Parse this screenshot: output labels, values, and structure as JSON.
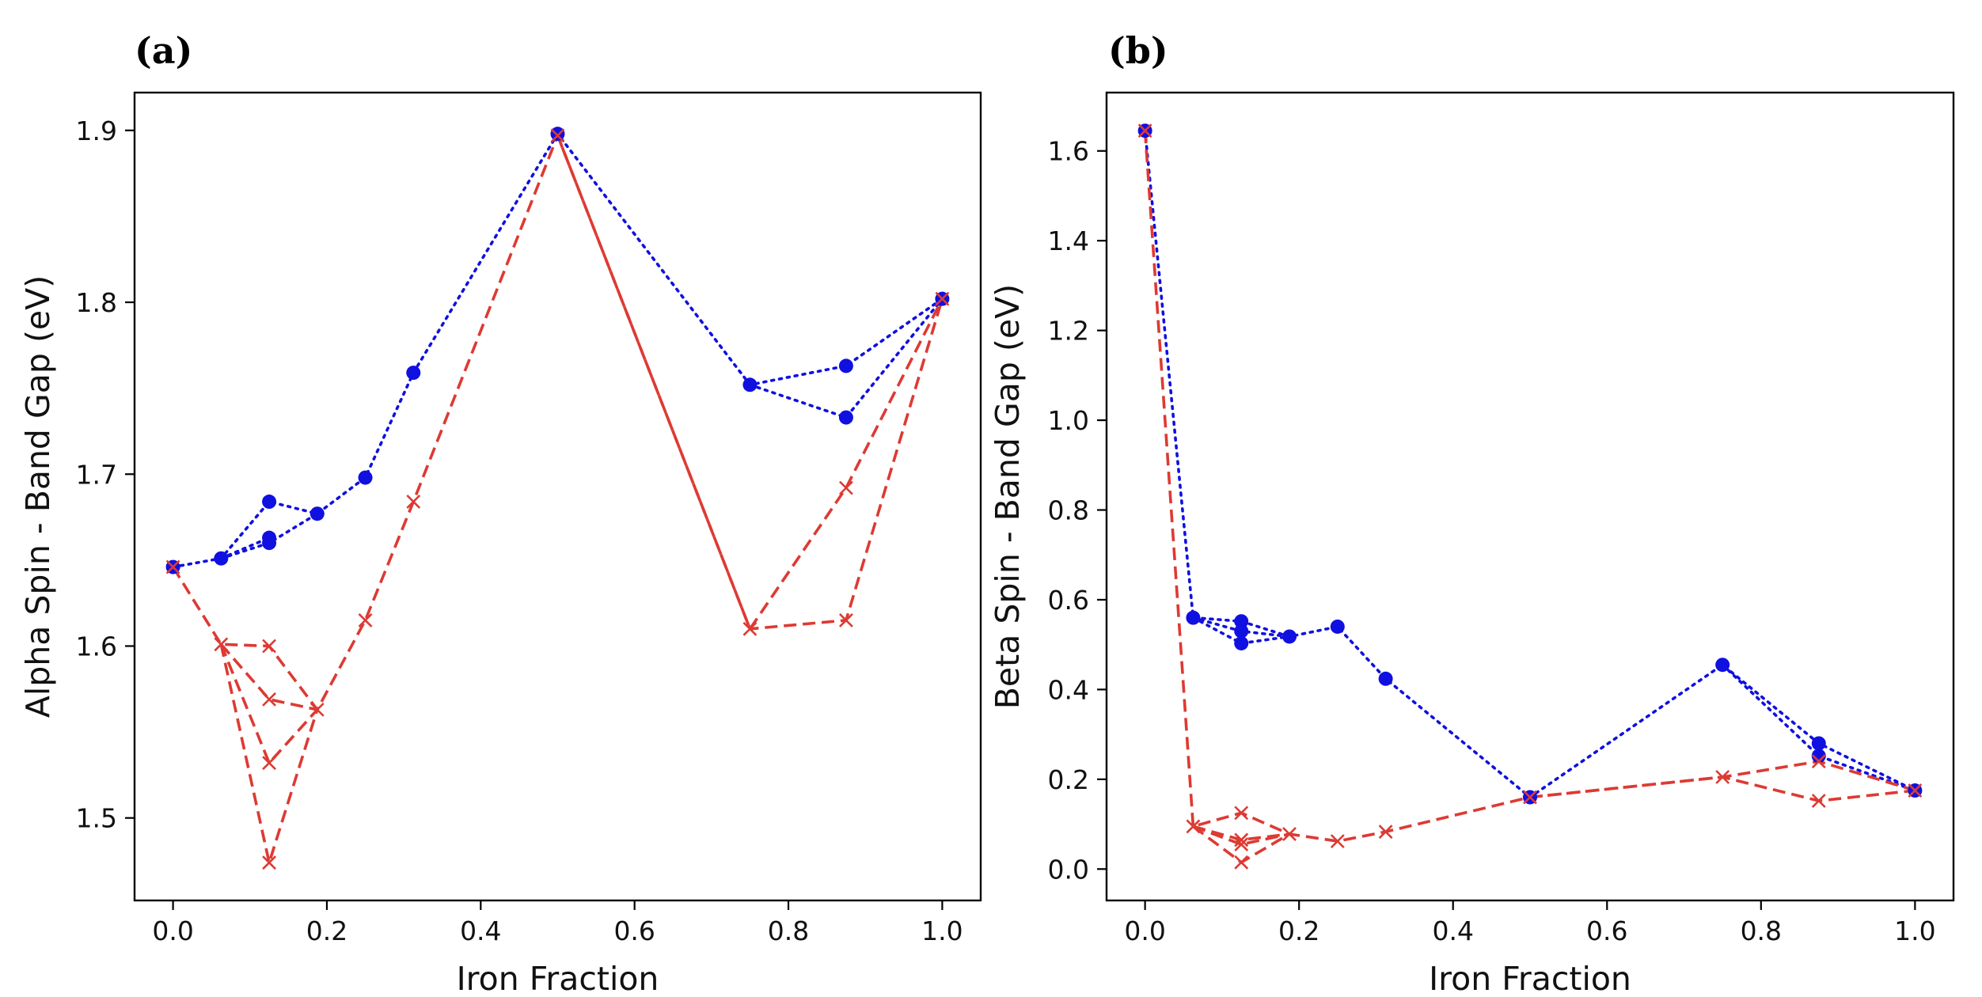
{
  "chart_data": [
    {
      "type": "line",
      "panel_label": "(a)",
      "xlabel": "Iron Fraction",
      "ylabel": "Alpha Spin - Band Gap (eV)",
      "xlim": [
        -0.05,
        1.05
      ],
      "ylim": [
        1.452,
        1.922
      ],
      "xticks": [
        0.0,
        0.2,
        0.4,
        0.6,
        0.8,
        1.0
      ],
      "xtick_labels": [
        "0.0",
        "0.2",
        "0.4",
        "0.6",
        "0.8",
        "1.0"
      ],
      "yticks": [
        1.5,
        1.6,
        1.7,
        1.8,
        1.9
      ],
      "ytick_labels": [
        "1.5",
        "1.6",
        "1.7",
        "1.8",
        "1.9"
      ],
      "series": [
        {
          "name": "blue-dotted-circles",
          "color": "#1010e0",
          "linestyle": "dotted",
          "marker": "circle",
          "paths": [
            {
              "x": [
                0.0,
                0.0625,
                0.125,
                0.1875,
                0.25,
                0.3125,
                0.5,
                0.75,
                0.875,
                1.0
              ],
              "y": [
                1.646,
                1.651,
                1.684,
                1.677,
                1.698,
                1.759,
                1.898,
                1.752,
                1.763,
                1.802
              ]
            },
            {
              "x": [
                0.0625,
                0.125,
                0.1875
              ],
              "y": [
                1.651,
                1.66,
                1.677
              ]
            },
            {
              "x": [
                0.0625,
                0.125
              ],
              "y": [
                1.651,
                1.663
              ]
            },
            {
              "x": [
                0.75,
                0.875,
                1.0
              ],
              "y": [
                1.752,
                1.733,
                1.802
              ]
            }
          ]
        },
        {
          "name": "red-dashed-crosses",
          "color": "#dd3a33",
          "linestyle": "dashed",
          "marker": "x",
          "paths": [
            {
              "x": [
                0.0,
                0.0625,
                0.125,
                0.1875,
                0.25,
                0.3125,
                0.5,
                0.75,
                0.875,
                1.0
              ],
              "y": [
                1.646,
                1.601,
                1.6,
                1.563,
                1.615,
                1.684,
                1.897,
                1.61,
                1.615,
                1.802
              ]
            },
            {
              "x": [
                0.0625,
                0.125,
                0.1875
              ],
              "y": [
                1.601,
                1.569,
                1.563
              ]
            },
            {
              "x": [
                0.0625,
                0.125,
                0.1875
              ],
              "y": [
                1.601,
                1.532,
                1.563
              ]
            },
            {
              "x": [
                0.0625,
                0.125,
                0.1875
              ],
              "y": [
                1.601,
                1.474,
                1.563
              ]
            },
            {
              "x": [
                0.5,
                0.75
              ],
              "y": [
                1.897,
                1.61
              ]
            },
            {
              "x": [
                0.75,
                0.875,
                1.0
              ],
              "y": [
                1.61,
                1.692,
                1.802
              ]
            }
          ]
        }
      ]
    },
    {
      "type": "line",
      "panel_label": "(b)",
      "xlabel": "Iron Fraction",
      "ylabel": "Beta Spin - Band Gap (eV)",
      "xlim": [
        -0.05,
        1.05
      ],
      "ylim": [
        -0.07,
        1.73
      ],
      "xticks": [
        0.0,
        0.2,
        0.4,
        0.6,
        0.8,
        1.0
      ],
      "xtick_labels": [
        "0.0",
        "0.2",
        "0.4",
        "0.6",
        "0.8",
        "1.0"
      ],
      "yticks": [
        0.0,
        0.2,
        0.4,
        0.6,
        0.8,
        1.0,
        1.2,
        1.4,
        1.6
      ],
      "ytick_labels": [
        "0.0",
        "0.2",
        "0.4",
        "0.6",
        "0.8",
        "1.0",
        "1.2",
        "1.4",
        "1.6"
      ],
      "series": [
        {
          "name": "blue-dotted-circles",
          "color": "#1010e0",
          "linestyle": "dotted",
          "marker": "circle",
          "paths": [
            {
              "x": [
                0.0,
                0.0625,
                0.125,
                0.1875,
                0.25,
                0.3125,
                0.5,
                0.75,
                0.875,
                1.0
              ],
              "y": [
                1.645,
                0.56,
                0.552,
                0.518,
                0.54,
                0.424,
                0.16,
                0.455,
                0.28,
                0.175
              ]
            },
            {
              "x": [
                0.0625,
                0.125,
                0.1875
              ],
              "y": [
                0.56,
                0.53,
                0.518
              ]
            },
            {
              "x": [
                0.0625,
                0.125,
                0.1875
              ],
              "y": [
                0.56,
                0.503,
                0.518
              ]
            },
            {
              "x": [
                0.75,
                0.875,
                1.0
              ],
              "y": [
                0.455,
                0.252,
                0.175
              ]
            }
          ]
        },
        {
          "name": "red-dashed-crosses",
          "color": "#dd3a33",
          "linestyle": "dashed",
          "marker": "x",
          "paths": [
            {
              "x": [
                0.0,
                0.0625,
                0.125,
                0.1875,
                0.25,
                0.3125,
                0.5,
                0.75,
                0.875,
                1.0
              ],
              "y": [
                1.645,
                0.095,
                0.125,
                0.078,
                0.062,
                0.083,
                0.16,
                0.205,
                0.152,
                0.175
              ]
            },
            {
              "x": [
                0.0625,
                0.125,
                0.1875
              ],
              "y": [
                0.095,
                0.065,
                0.078
              ]
            },
            {
              "x": [
                0.0625,
                0.125,
                0.1875
              ],
              "y": [
                0.095,
                0.055,
                0.078
              ]
            },
            {
              "x": [
                0.0625,
                0.125,
                0.1875
              ],
              "y": [
                0.095,
                0.015,
                0.078
              ]
            },
            {
              "x": [
                0.5,
                0.75,
                0.875,
                1.0
              ],
              "y": [
                0.16,
                0.205,
                0.24,
                0.175
              ]
            }
          ]
        }
      ]
    }
  ]
}
